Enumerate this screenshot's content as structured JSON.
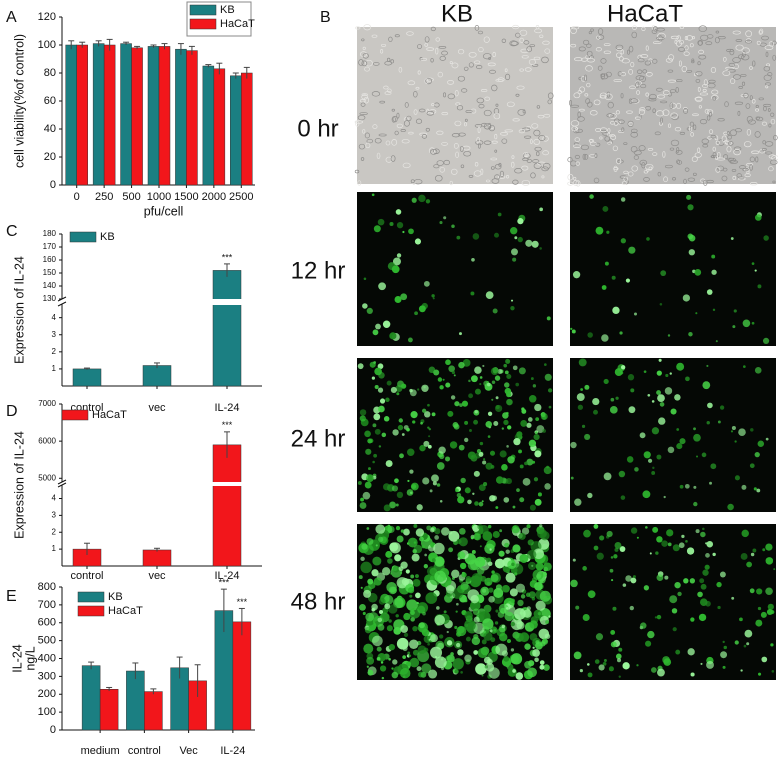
{
  "panel_b": {
    "label": "B",
    "columns": [
      "KB",
      "HaCaT"
    ],
    "rows": [
      "0 hr",
      "12 hr",
      "24 hr",
      "48 hr"
    ]
  },
  "chart_data": [
    {
      "panel_label": "A",
      "type": "bar",
      "categories": [
        "0",
        "250",
        "500",
        "1000",
        "1500",
        "2000",
        "2500"
      ],
      "ylabel": "cell viability(%of control)",
      "xlabel": "pfu/cell",
      "ylim": [
        0,
        120
      ],
      "yticks": [
        0,
        20,
        40,
        60,
        80,
        100,
        120
      ],
      "legend": "upper right",
      "series": [
        {
          "name": "KB",
          "color": "#1b7f82",
          "values": [
            100,
            101,
            101,
            99,
            97,
            85,
            78
          ],
          "errors": [
            3,
            2,
            1,
            1,
            4,
            1,
            2
          ]
        },
        {
          "name": "HaCaT",
          "color": "#f2161b",
          "values": [
            100,
            100,
            98,
            99,
            96,
            83,
            80
          ],
          "errors": [
            2,
            4,
            1,
            2,
            3,
            4,
            4
          ]
        }
      ]
    },
    {
      "panel_label": "C",
      "type": "bar",
      "categories": [
        "control",
        "vec",
        "IL-24"
      ],
      "ylabel": "Expression of IL-24",
      "ylim": [
        0,
        180
      ],
      "ybreak": [
        4.8,
        130
      ],
      "yticks": [
        1,
        2,
        3,
        4,
        130,
        140,
        150,
        160,
        170,
        180
      ],
      "legend": "upper left",
      "series": [
        {
          "name": "KB",
          "color": "#1b7f82",
          "values": [
            1,
            1.2,
            152
          ],
          "errors": [
            0.05,
            0.15,
            5
          ],
          "significance": [
            null,
            null,
            "***"
          ]
        }
      ]
    },
    {
      "panel_label": "D",
      "type": "bar",
      "categories": [
        "control",
        "vec",
        "IL-24"
      ],
      "ylabel": "Expression of IL-24",
      "ylim": [
        0,
        7000
      ],
      "ybreak": [
        4.8,
        4900
      ],
      "yticks": [
        1,
        2,
        3,
        4,
        5000,
        6000,
        7000
      ],
      "legend": "upper left",
      "series": [
        {
          "name": "HaCaT",
          "color": "#f2161b",
          "values": [
            1,
            0.95,
            5900
          ],
          "errors": [
            0.35,
            0.1,
            350
          ],
          "significance": [
            null,
            null,
            "***"
          ]
        }
      ]
    },
    {
      "panel_label": "E",
      "type": "bar",
      "categories": [
        "medium",
        "control",
        "Vec",
        "IL-24"
      ],
      "ylabel": [
        "IL-24",
        "ng/L"
      ],
      "ylim": [
        0,
        800
      ],
      "yticks": [
        0,
        100,
        200,
        300,
        400,
        500,
        600,
        700,
        800
      ],
      "legend": "upper left",
      "series": [
        {
          "name": "KB",
          "color": "#1b7f82",
          "values": [
            360,
            330,
            348,
            668
          ],
          "errors": [
            20,
            45,
            60,
            120
          ],
          "significance": [
            null,
            null,
            null,
            "***"
          ]
        },
        {
          "name": "HaCaT",
          "color": "#f2161b",
          "values": [
            228,
            215,
            275,
            605
          ],
          "errors": [
            10,
            15,
            90,
            75
          ],
          "significance": [
            null,
            null,
            null,
            "***"
          ]
        }
      ]
    }
  ]
}
